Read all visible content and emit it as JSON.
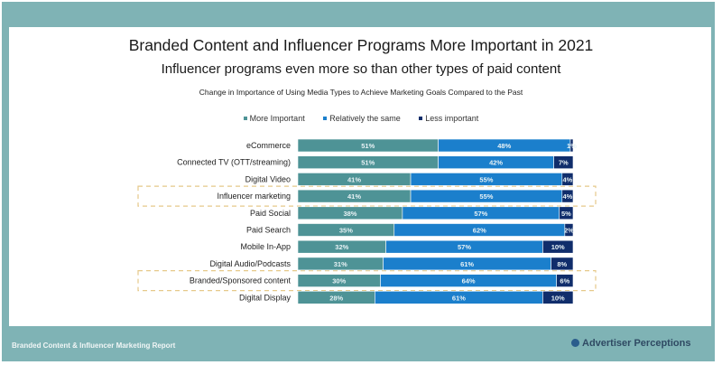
{
  "header": {
    "title": "Branded Content and Influencer Programs More Important in 2021",
    "subtitle": "Influencer programs even more so than other types of paid content"
  },
  "footer": {
    "report_name": "Branded Content & Influencer Marketing Report",
    "brand": "Advertiser Perceptions",
    "brand_icon": "globe-icon"
  },
  "colors": {
    "frame": "#7fb3b5",
    "more_important": "#4e9396",
    "relatively_same": "#1b7fcc",
    "less_important": "#102d6b",
    "highlight": "#e6c98a"
  },
  "chart_data": {
    "type": "bar",
    "orientation": "horizontal",
    "stacked": true,
    "title": "Change in Importance of Using Media Types to Achieve Marketing Goals Compared to the Past",
    "xlabel": "",
    "ylabel": "",
    "xlim": [
      0,
      100
    ],
    "legend_position": "top",
    "categories": [
      "eCommerce",
      "Connected TV (OTT/streaming)",
      "Digital Video",
      "Influencer marketing",
      "Paid Social",
      "Paid Search",
      "Mobile In-App",
      "Digital Audio/Podcasts",
      "Branded/Sponsored content",
      "Digital Display"
    ],
    "series": [
      {
        "name": "More Important",
        "values": [
          51,
          51,
          41,
          41,
          38,
          35,
          32,
          31,
          30,
          28
        ]
      },
      {
        "name": "Relatively the same",
        "values": [
          48,
          42,
          55,
          55,
          57,
          62,
          57,
          61,
          64,
          61
        ]
      },
      {
        "name": "Less important",
        "values": [
          1,
          7,
          4,
          4,
          5,
          2,
          10,
          8,
          6,
          10
        ]
      }
    ],
    "value_suffix": "%",
    "highlighted_categories": [
      "Influencer marketing",
      "Branded/Sponsored content"
    ]
  }
}
